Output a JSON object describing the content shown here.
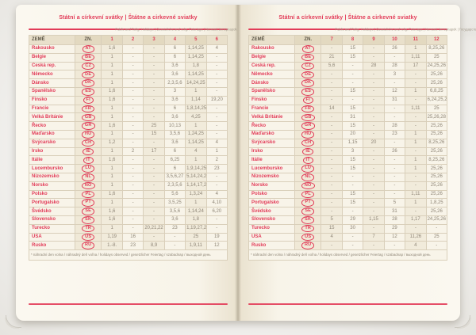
{
  "page_title": "Státní a církevní svátky | Štátne a cirkevné sviatky",
  "page_subtitle": "Public and Relig. Holidays | Gesetzliche und relig. Feiertage | Nemzeti ünnepnapok | Государственные и церковные праздники",
  "footnote": "* náhradní den volna / náhradný deň voľna / holidays observed / gesetzlicher Feiertag / szabadnap / выходной день",
  "table_headers": {
    "country": "ZEMĚ",
    "code": "ZN."
  },
  "colors": {
    "accent": "#e23b58",
    "page_background": "#f8f4e9",
    "header_band": "#e9e0cb"
  },
  "countries": [
    {
      "name": "Rakousko",
      "code": "AT"
    },
    {
      "name": "Belgie",
      "code": "BE"
    },
    {
      "name": "Česká rep.",
      "code": "CZ"
    },
    {
      "name": "Německo",
      "code": "DE"
    },
    {
      "name": "Dánsko",
      "code": "DK"
    },
    {
      "name": "Španělsko",
      "code": "ES"
    },
    {
      "name": "Finsko",
      "code": "FI"
    },
    {
      "name": "Francie",
      "code": "FR"
    },
    {
      "name": "Velká Británie",
      "code": "GB"
    },
    {
      "name": "Řecko",
      "code": "GR"
    },
    {
      "name": "Maďarsko",
      "code": "HU"
    },
    {
      "name": "Švýcarsko",
      "code": "CH"
    },
    {
      "name": "Irsko",
      "code": "IE"
    },
    {
      "name": "Itálie",
      "code": "IT"
    },
    {
      "name": "Lucembursko",
      "code": "LU"
    },
    {
      "name": "Nizozemsko",
      "code": "NL"
    },
    {
      "name": "Norsko",
      "code": "NO"
    },
    {
      "name": "Polsko",
      "code": "PL"
    },
    {
      "name": "Portugalsko",
      "code": "PT"
    },
    {
      "name": "Švédsko",
      "code": "SE"
    },
    {
      "name": "Slovensko",
      "code": "SK"
    },
    {
      "name": "Turecko",
      "code": "TR"
    },
    {
      "name": "USA",
      "code": "US"
    },
    {
      "name": "Rusko",
      "code": "RU"
    }
  ],
  "pages": [
    {
      "months": [
        "1",
        "2",
        "3",
        "4",
        "5",
        "6"
      ],
      "holidays": {
        "AT": [
          "1,6",
          "-",
          "-",
          "6",
          "1,14,25",
          "4"
        ],
        "BE": [
          "1",
          "-",
          "-",
          "6",
          "1,14,25",
          "-"
        ],
        "CZ": [
          "1",
          "-",
          "-",
          "3,6",
          "1,8",
          "-"
        ],
        "DE": [
          "1",
          "-",
          "-",
          "3,6",
          "1,14,25",
          "-"
        ],
        "DK": [
          "1",
          "-",
          "-",
          "2,3,5,6",
          "14,24,25",
          "-"
        ],
        "ES": [
          "1,6",
          "-",
          "-",
          "3",
          "1",
          "-"
        ],
        "FI": [
          "1,6",
          "-",
          "-",
          "3,6",
          "1,14",
          "19,20"
        ],
        "FR": [
          "1",
          "-",
          "-",
          "6",
          "1,8,14,25",
          "-"
        ],
        "GB": [
          "1",
          "-",
          "-",
          "3,6",
          "4,25",
          "-"
        ],
        "GR": [
          "1,6",
          "-",
          "25",
          "10,13",
          "1",
          "-"
        ],
        "HU": [
          "1",
          "-",
          "15",
          "3,5,6",
          "1,24,25",
          "-"
        ],
        "CH": [
          "1,2",
          "-",
          "-",
          "3,6",
          "1,14,25",
          "4"
        ],
        "IE": [
          "1",
          "2",
          "17",
          "6",
          "4",
          "1"
        ],
        "IT": [
          "1,6",
          "-",
          "-",
          "6,25",
          "1",
          "2"
        ],
        "LU": [
          "1",
          "-",
          "-",
          "6",
          "1,9,14,25",
          "23"
        ],
        "NL": [
          "1",
          "-",
          "-",
          "3,5,6,27",
          "5,14,24,25",
          "-"
        ],
        "NO": [
          "1",
          "-",
          "-",
          "2,3,5,6",
          "1,14,17,24,25",
          "-"
        ],
        "PL": [
          "1,6",
          "-",
          "-",
          "5,6",
          "1,3,24",
          "4"
        ],
        "PT": [
          "1",
          "-",
          "-",
          "3,5,25",
          "1",
          "4,10"
        ],
        "SE": [
          "1,6",
          "-",
          "-",
          "3,5,6",
          "1,14,24",
          "6,20"
        ],
        "SK": [
          "1,6",
          "-",
          "-",
          "3,6",
          "1,8",
          "-"
        ],
        "TR": [
          "1",
          "-",
          "20,21,22",
          "23",
          "1,19,27,28,29,30",
          "-"
        ],
        "US": [
          "1,19",
          "16",
          "-",
          "-",
          "25",
          "19"
        ],
        "RU": [
          "1.-8.",
          "23",
          "8,9",
          "-",
          "1,9,11",
          "12"
        ]
      }
    },
    {
      "months": [
        "7",
        "8",
        "9",
        "10",
        "11",
        "12"
      ],
      "holidays": {
        "AT": [
          "-",
          "15",
          "-",
          "26",
          "1",
          "8,25,26"
        ],
        "BE": [
          "21",
          "15",
          "-",
          "-",
          "1,11",
          "25"
        ],
        "CZ": [
          "5,6",
          "-",
          "28",
          "28",
          "17",
          "24,25,26"
        ],
        "DE": [
          "-",
          "-",
          "-",
          "3",
          "-",
          "25,26"
        ],
        "DK": [
          "-",
          "-",
          "-",
          "-",
          "-",
          "25,26"
        ],
        "ES": [
          "-",
          "15",
          "-",
          "12",
          "1",
          "6,8,25"
        ],
        "FI": [
          "-",
          "-",
          "-",
          "31",
          "-",
          "6,24,25,26"
        ],
        "FR": [
          "14",
          "15",
          "-",
          "-",
          "1,11",
          "25"
        ],
        "GB": [
          "-",
          "31",
          "-",
          "-",
          "-",
          "25,26,28"
        ],
        "GR": [
          "-",
          "15",
          "-",
          "28",
          "-",
          "25,26"
        ],
        "HU": [
          "-",
          "20",
          "-",
          "23",
          "1",
          "25,26"
        ],
        "CH": [
          "-",
          "1,15",
          "20",
          "-",
          "1",
          "8,25,26"
        ],
        "IE": [
          "-",
          "3",
          "-",
          "26",
          "-",
          "25,26"
        ],
        "IT": [
          "-",
          "15",
          "-",
          "-",
          "1",
          "8,25,26"
        ],
        "LU": [
          "-",
          "15",
          "-",
          "-",
          "1",
          "25,26"
        ],
        "NL": [
          "-",
          "-",
          "-",
          "-",
          "-",
          "25,26"
        ],
        "NO": [
          "-",
          "-",
          "-",
          "-",
          "-",
          "25,26"
        ],
        "PL": [
          "-",
          "15",
          "-",
          "-",
          "1,11",
          "25,26"
        ],
        "PT": [
          "-",
          "15",
          "-",
          "5",
          "1",
          "1,8,25"
        ],
        "SE": [
          "-",
          "-",
          "-",
          "31",
          "-",
          "25,26"
        ],
        "SK": [
          "5",
          "29",
          "1,15",
          "28",
          "1,17",
          "24,25,26"
        ],
        "TR": [
          "15",
          "30",
          "-",
          "29",
          "-",
          "-"
        ],
        "US": [
          "4",
          "-",
          "7",
          "12",
          "11,26",
          "25"
        ],
        "RU": [
          "-",
          "-",
          "-",
          "-",
          "4",
          "-"
        ]
      }
    }
  ]
}
